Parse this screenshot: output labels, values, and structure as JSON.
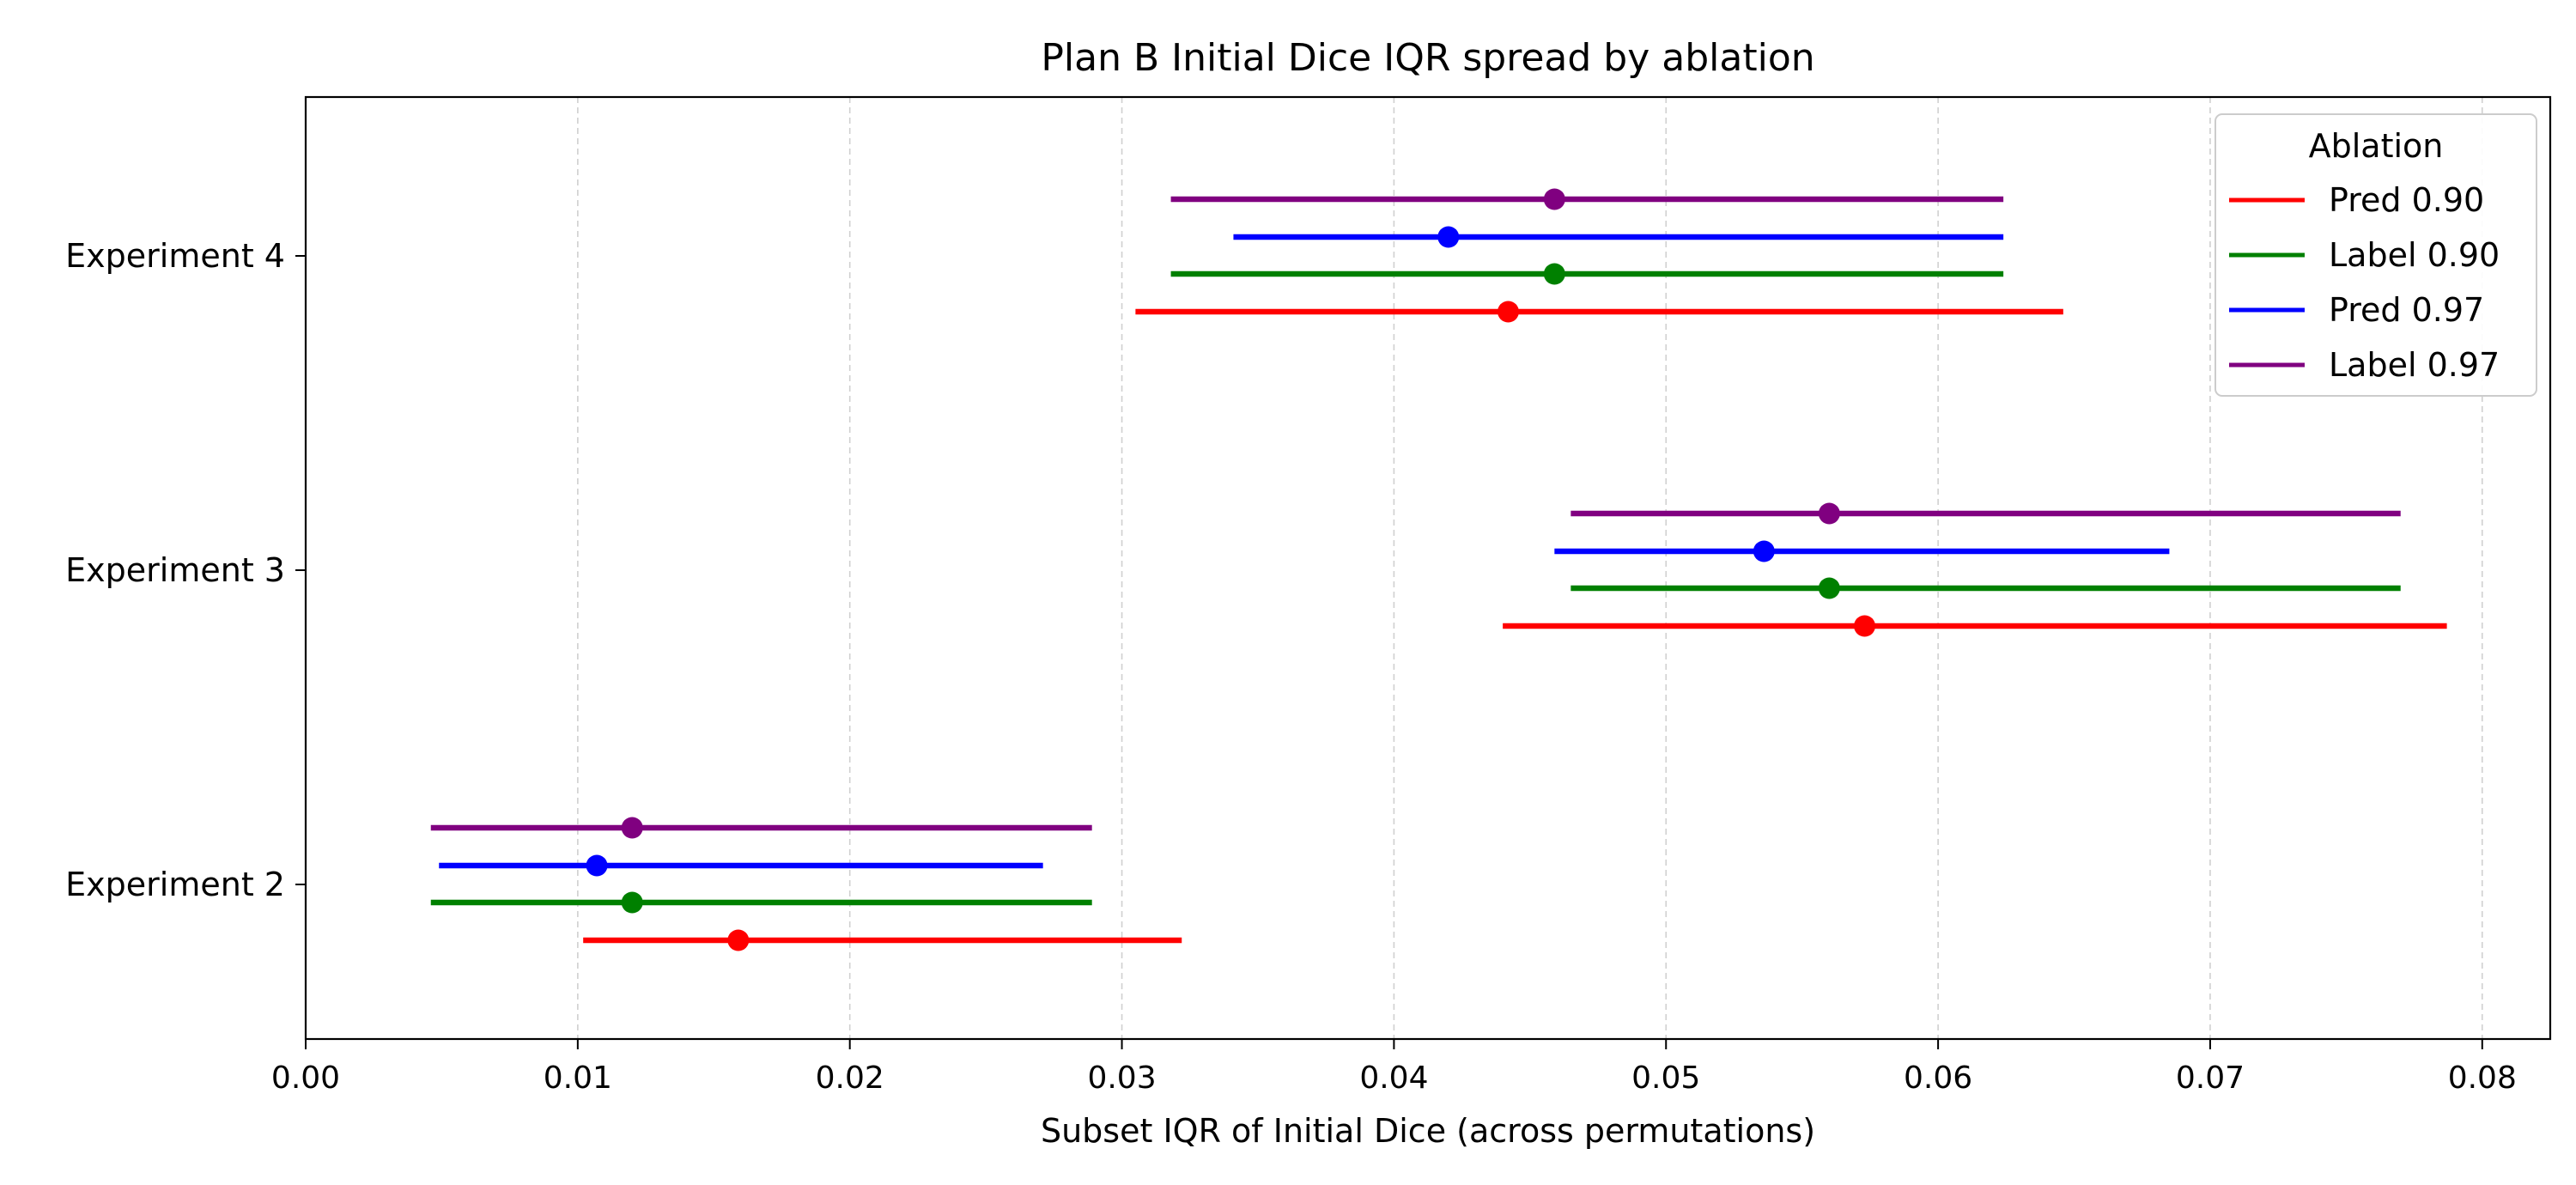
{
  "chart_data": {
    "type": "interval",
    "title": "Plan B Initial Dice IQR spread by ablation",
    "xlabel": "Subset IQR of Initial Dice (across permutations)",
    "ylabel": "",
    "xlim": [
      0.0,
      0.0825
    ],
    "x_ticks": [
      0.0,
      0.01,
      0.02,
      0.03,
      0.04,
      0.05,
      0.06,
      0.07,
      0.08
    ],
    "x_tick_labels": [
      "0.00",
      "0.01",
      "0.02",
      "0.03",
      "0.04",
      "0.05",
      "0.06",
      "0.07",
      "0.08"
    ],
    "categories": [
      "Experiment 2",
      "Experiment 3",
      "Experiment 4"
    ],
    "grid": "x-dashed",
    "legend": {
      "title": "Ablation",
      "placement": "top-right"
    },
    "series": [
      {
        "name": "Pred 0.90",
        "color": "#ff0000",
        "points": [
          {
            "category": "Experiment 2",
            "low": 0.0102,
            "mid": 0.0159,
            "high": 0.0322
          },
          {
            "category": "Experiment 3",
            "low": 0.044,
            "mid": 0.0573,
            "high": 0.0787
          },
          {
            "category": "Experiment 4",
            "low": 0.0305,
            "mid": 0.0442,
            "high": 0.0646
          }
        ]
      },
      {
        "name": "Label 0.90",
        "color": "#008000",
        "points": [
          {
            "category": "Experiment 2",
            "low": 0.0046,
            "mid": 0.012,
            "high": 0.0289
          },
          {
            "category": "Experiment 3",
            "low": 0.0465,
            "mid": 0.056,
            "high": 0.077
          },
          {
            "category": "Experiment 4",
            "low": 0.0318,
            "mid": 0.0459,
            "high": 0.0624
          }
        ]
      },
      {
        "name": "Pred 0.97",
        "color": "#0000ff",
        "points": [
          {
            "category": "Experiment 2",
            "low": 0.0049,
            "mid": 0.0107,
            "high": 0.0271
          },
          {
            "category": "Experiment 3",
            "low": 0.0459,
            "mid": 0.0536,
            "high": 0.0685
          },
          {
            "category": "Experiment 4",
            "low": 0.0341,
            "mid": 0.042,
            "high": 0.0624
          }
        ]
      },
      {
        "name": "Label 0.97",
        "color": "#800080",
        "points": [
          {
            "category": "Experiment 2",
            "low": 0.0046,
            "mid": 0.012,
            "high": 0.0289
          },
          {
            "category": "Experiment 3",
            "low": 0.0465,
            "mid": 0.056,
            "high": 0.077
          },
          {
            "category": "Experiment 4",
            "low": 0.0318,
            "mid": 0.0459,
            "high": 0.0624
          }
        ]
      }
    ]
  }
}
